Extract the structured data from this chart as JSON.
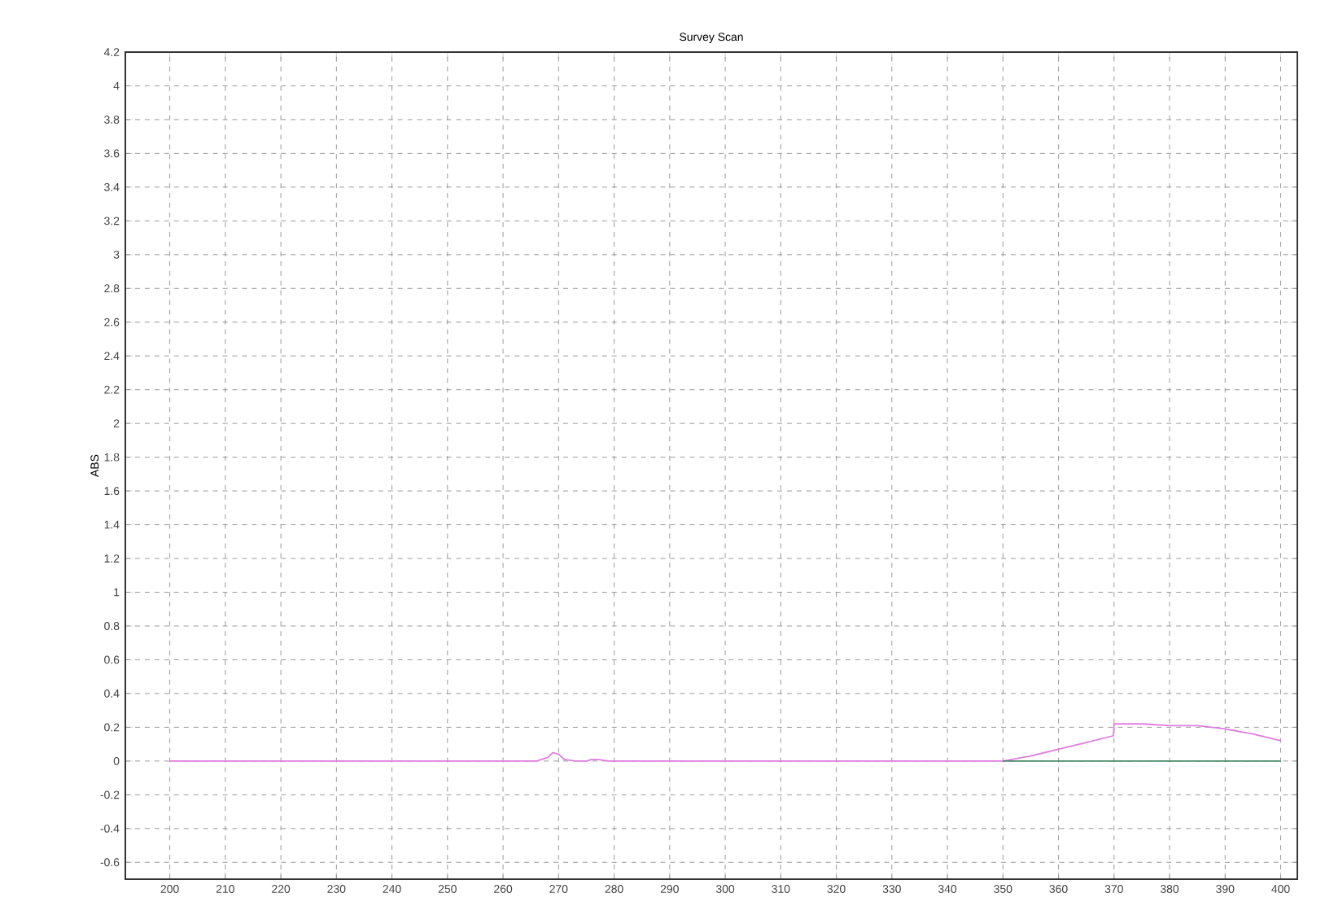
{
  "chart_data": {
    "type": "line",
    "title": "Survey Scan",
    "ylabel": "ABS",
    "series": [
      {
        "color": "#e07ce0",
        "x": [
          200,
          230,
          260,
          266,
          268,
          269,
          270,
          271,
          273,
          275,
          276,
          277,
          279,
          300,
          330,
          350,
          355,
          360,
          365,
          369.9,
          370,
          375,
          380,
          385,
          390,
          395,
          400
        ],
        "values": [
          0,
          0,
          0,
          0,
          0.02,
          0.05,
          0.04,
          0.01,
          0,
          0,
          0.01,
          0.01,
          0,
          0,
          0,
          0,
          0.03,
          0.07,
          0.11,
          0.15,
          0.22,
          0.22,
          0.21,
          0.21,
          0.19,
          0.16,
          0.12
        ]
      },
      {
        "color": "#4a8a6a",
        "x": [
          350,
          400
        ],
        "values": [
          0,
          0
        ]
      }
    ],
    "xlim": [
      192,
      403
    ],
    "ylim": [
      -0.7,
      4.2
    ],
    "xticks": [
      200,
      210,
      220,
      230,
      240,
      250,
      260,
      270,
      280,
      290,
      300,
      310,
      320,
      330,
      340,
      350,
      360,
      370,
      380,
      390,
      400
    ],
    "yticks": [
      -0.6,
      -0.4,
      -0.2,
      0,
      0.2,
      0.4,
      0.6,
      0.8,
      1,
      1.2,
      1.4,
      1.6,
      1.8,
      2,
      2.2,
      2.4,
      2.6,
      2.8,
      3,
      3.2,
      3.4,
      3.6,
      3.8,
      4,
      4.2
    ],
    "grid": true,
    "line_style": "solid",
    "marker": "none"
  }
}
